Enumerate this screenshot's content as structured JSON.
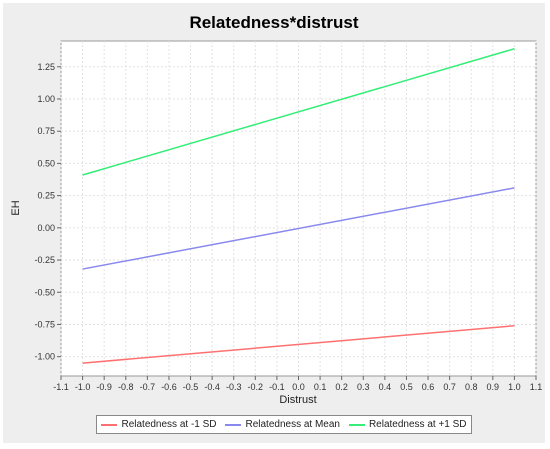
{
  "chart_data": {
    "type": "line",
    "title": "Relatedness*distrust",
    "xlabel": "Distrust",
    "ylabel": "EH",
    "xlim": [
      -1.1,
      1.1
    ],
    "ylim": [
      -1.15,
      1.45
    ],
    "x_ticks": [
      "-1.1",
      "-1.0",
      "-0.9",
      "-0.8",
      "-0.7",
      "-0.6",
      "-0.5",
      "-0.4",
      "-0.3",
      "-0.2",
      "-0.1",
      "0.0",
      "0.1",
      "0.2",
      "0.3",
      "0.4",
      "0.5",
      "0.6",
      "0.7",
      "0.8",
      "0.9",
      "1.0",
      "1.1"
    ],
    "y_ticks": [
      "-1.00",
      "-0.75",
      "-0.50",
      "-0.25",
      "0.00",
      "0.25",
      "0.50",
      "0.75",
      "1.00",
      "1.25"
    ],
    "grid": true,
    "legend_position": "bottom",
    "x": [
      -1.0,
      1.0
    ],
    "series": [
      {
        "name": "Relatedness at -1 SD",
        "values": [
          -1.05,
          -0.76
        ],
        "color": "#ff7070"
      },
      {
        "name": "Relatedness at Mean",
        "values": [
          -0.32,
          0.31
        ],
        "color": "#8888ee"
      },
      {
        "name": "Relatedness at +1 SD",
        "values": [
          0.41,
          1.39
        ],
        "color": "#33ee77"
      }
    ]
  }
}
